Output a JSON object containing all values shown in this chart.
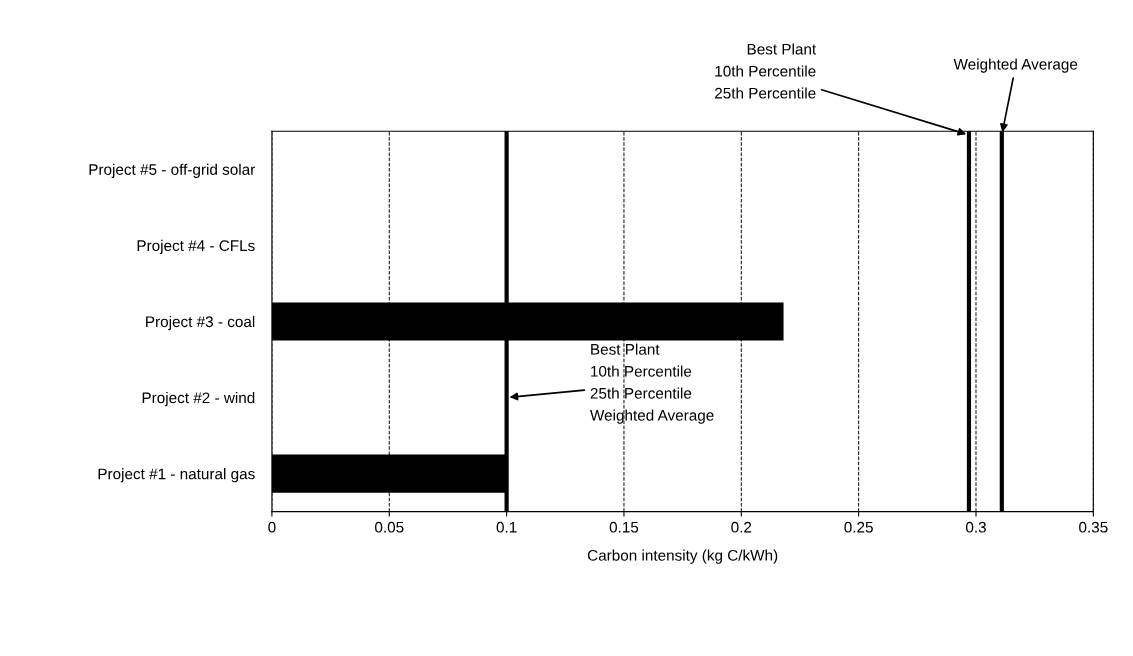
{
  "chart_data": {
    "type": "bar",
    "orientation": "horizontal",
    "xlabel": "Carbon intensity (kg C/kWh)",
    "categories": [
      "Project #5 - off-grid solar",
      "Project #4 - CFLs",
      "Project #3 - coal",
      "Project #2 - wind",
      "Project #1 - natural gas"
    ],
    "values": [
      0,
      0,
      0.218,
      0,
      0.1
    ],
    "color": "#000000",
    "xlim": [
      0,
      0.35
    ],
    "xticks": [
      0,
      0.05,
      0.1,
      0.15,
      0.2,
      0.25,
      0.3,
      0.35
    ],
    "grid": "x",
    "ref_lines": [
      {
        "axis": "x",
        "value": 0.297,
        "label": "Best Plant\n10th Percentile\n25th Percentile",
        "color": "#000000",
        "line_style": "solid"
      },
      {
        "axis": "x",
        "value": 0.311,
        "label": "Weighted Average",
        "color": "#000000",
        "line_style": "solid"
      },
      {
        "axis": "x",
        "value": 0.1,
        "label": "Best Plant\n10th Percentile\n25th Percentile\nWeighted Average",
        "color": "#000000",
        "line_style": "solid"
      }
    ]
  }
}
